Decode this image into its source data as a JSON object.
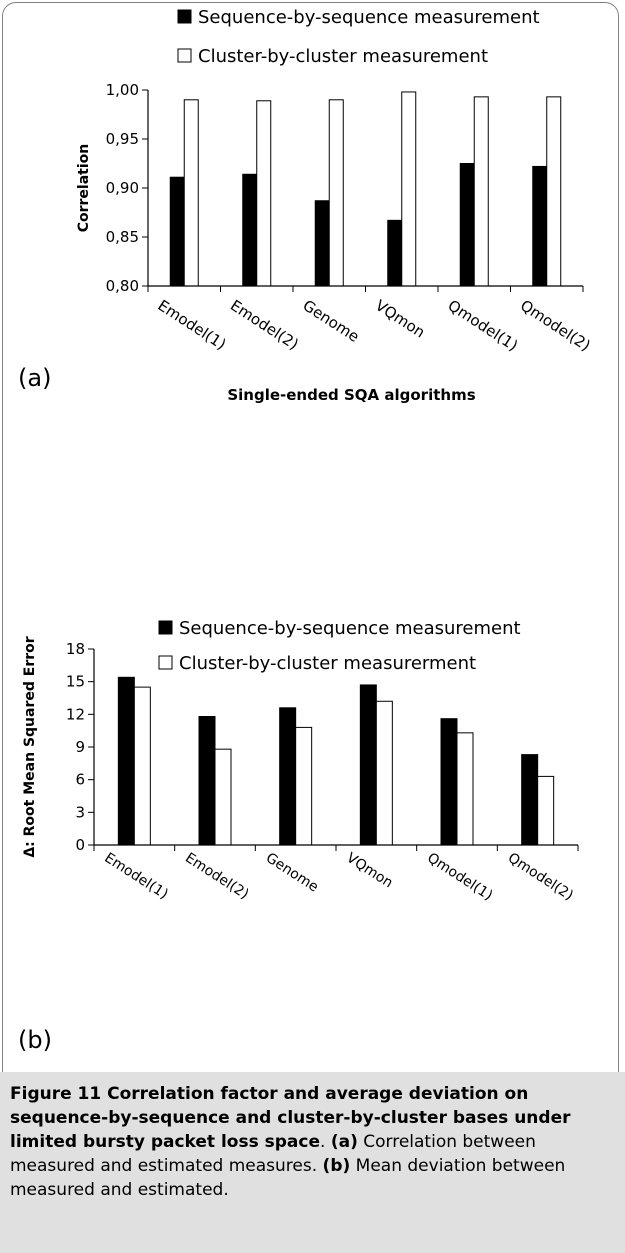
{
  "chart_data": [
    {
      "type": "bar",
      "panel_label": "(a)",
      "categories": [
        "Emodel(1)",
        "Emodel(2)",
        "Genome",
        "VQmon",
        "Qmodel(1)",
        "Qmodel(2)"
      ],
      "series": [
        {
          "name": "Sequence-by-sequence measurement",
          "color": "#000000",
          "values": [
            0.911,
            0.914,
            0.887,
            0.867,
            0.925,
            0.922
          ]
        },
        {
          "name": "Cluster-by-cluster measurement",
          "color": "#ffffff",
          "values": [
            0.99,
            0.989,
            0.99,
            0.998,
            0.993,
            0.993
          ]
        }
      ],
      "xlabel": "Single-ended SQA algorithms",
      "ylabel": "Correlation",
      "ylim": [
        0.8,
        1.0
      ],
      "yticks": [
        "0,80",
        "0,85",
        "0,90",
        "0,95",
        "1,00"
      ],
      "legend": "top",
      "grid": false
    },
    {
      "type": "bar",
      "panel_label": "(b)",
      "categories": [
        "Emodel(1)",
        "Emodel(2)",
        "Genome",
        "VQmon",
        "Qmodel(1)",
        "Qmodel(2)"
      ],
      "series": [
        {
          "name": "Sequence-by-sequence measurement",
          "color": "#000000",
          "values": [
            15.4,
            11.8,
            12.6,
            14.7,
            11.6,
            8.3
          ]
        },
        {
          "name": "Cluster-by-cluster measurerment",
          "color": "#ffffff",
          "values": [
            14.5,
            8.8,
            10.8,
            13.2,
            10.3,
            6.3
          ]
        }
      ],
      "xlabel": "",
      "ylabel": "Δ: Root Mean Squared Error",
      "ylim": [
        0,
        18
      ],
      "yticks": [
        "0",
        "3",
        "6",
        "9",
        "12",
        "15",
        "18"
      ],
      "legend": "top",
      "grid": false
    }
  ],
  "caption": {
    "figure_label": "Figure 11",
    "title": " Correlation factor and average deviation on sequence-by-sequence and cluster-by-cluster bases under limited bursty packet loss space",
    "title_end": ". ",
    "part_a_label": "(a)",
    "part_a_text": " Correlation between measured and estimated measures. ",
    "part_b_label": "(b)",
    "part_b_text": " Mean deviation between measured and estimated."
  }
}
